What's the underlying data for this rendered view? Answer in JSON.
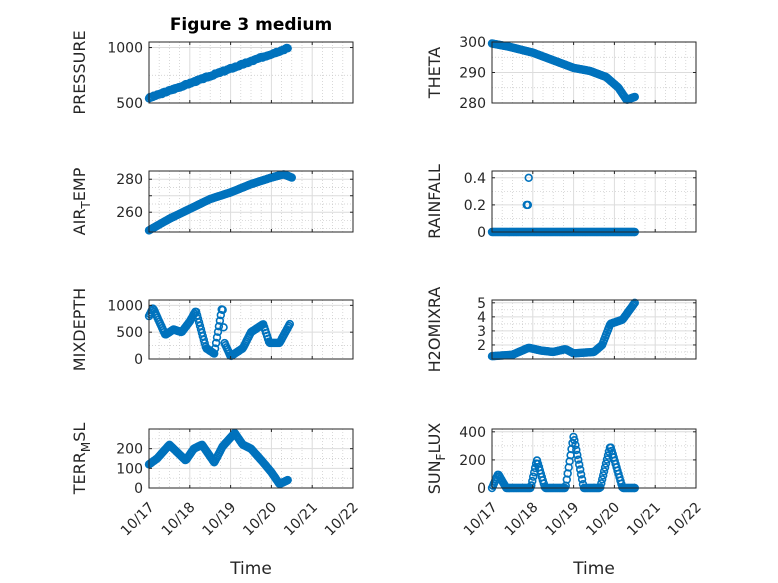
{
  "figure": {
    "title": "Figure 3 medium",
    "xlabel": "Time",
    "xtick_labels": [
      "10/17",
      "10/18",
      "10/19",
      "10/20",
      "10/21",
      "10/22"
    ],
    "marker_color": "#0072BD"
  },
  "chart_data": [
    {
      "type": "scatter",
      "name": "PRESSURE",
      "ylabel": "PRESSURE",
      "ylim": [
        500,
        1050
      ],
      "yticks": [
        500,
        1000
      ],
      "grid": true,
      "series": [
        {
          "x": [
            0.0,
            3.4
          ],
          "y": [
            545,
            995
          ],
          "shape": "linear",
          "noise": 6
        }
      ]
    },
    {
      "type": "scatter",
      "name": "THETA",
      "ylabel": "THETA",
      "ylim": [
        280,
        300
      ],
      "yticks": [
        280,
        290,
        300
      ],
      "grid": true,
      "series": [
        {
          "x": [
            0.0,
            0.4,
            1.0,
            1.6,
            2.0,
            2.4,
            2.8,
            3.1,
            3.3,
            3.5
          ],
          "y": [
            299.5,
            298.5,
            296.5,
            293.5,
            291.5,
            290.5,
            288.5,
            285.0,
            281.0,
            282.0
          ],
          "shape": "interp"
        }
      ]
    },
    {
      "type": "scatter",
      "name": "AIR_TEMP",
      "ylabel": "AIR",
      "ylabel_sub": "T",
      "ylabel_rest": "EMP",
      "ylim": [
        248,
        285
      ],
      "yticks": [
        260,
        270,
        280
      ],
      "tick_labels": [
        "260",
        "",
        "280"
      ],
      "grid": true,
      "series": [
        {
          "x": [
            0.0,
            0.5,
            1.0,
            1.5,
            2.0,
            2.5,
            3.0,
            3.3,
            3.5
          ],
          "y": [
            249,
            256,
            262,
            268,
            272,
            277,
            281,
            283,
            281
          ],
          "shape": "interp"
        }
      ]
    },
    {
      "type": "scatter",
      "name": "RAINFALL",
      "ylabel": "RAINFALL",
      "ylim": [
        0,
        0.45
      ],
      "yticks": [
        0,
        0.2,
        0.4
      ],
      "grid": true,
      "series": [
        {
          "x": [
            0.0,
            3.5
          ],
          "y": [
            0,
            0
          ],
          "shape": "flat",
          "spikes": [
            [
              0.85,
              0.2
            ],
            [
              0.88,
              0.2
            ],
            [
              0.9,
              0.4
            ]
          ]
        }
      ]
    },
    {
      "type": "scatter",
      "name": "MIXDEPTH",
      "ylabel": "MIXDEPTH",
      "ylim": [
        0,
        1100
      ],
      "yticks": [
        0,
        500,
        1000
      ],
      "grid": true,
      "series": [
        {
          "x": [
            0.0,
            0.1,
            0.4,
            0.6,
            0.8,
            1.0,
            1.15,
            1.4,
            1.6,
            1.8,
            1.85,
            2.0,
            2.3,
            2.5,
            2.8,
            2.95,
            3.2,
            3.45
          ],
          "y": [
            800,
            950,
            450,
            550,
            500,
            700,
            900,
            200,
            100,
            1000,
            300,
            50,
            200,
            500,
            650,
            300,
            300,
            650
          ],
          "shape": "interp"
        }
      ]
    },
    {
      "type": "scatter",
      "name": "H2OMIXRA",
      "ylabel": "H2OMIXRA",
      "ylim": [
        1,
        5.2
      ],
      "yticks": [
        2,
        3,
        4,
        5
      ],
      "grid": true,
      "series": [
        {
          "x": [
            0.0,
            0.5,
            0.9,
            1.2,
            1.5,
            1.8,
            2.0,
            2.5,
            2.7,
            2.9,
            3.2,
            3.5
          ],
          "y": [
            1.2,
            1.3,
            1.8,
            1.6,
            1.5,
            1.7,
            1.4,
            1.5,
            2.0,
            3.5,
            3.8,
            5.0
          ],
          "shape": "interp"
        }
      ]
    },
    {
      "type": "scatter",
      "name": "TERR_MSL",
      "ylabel": "TERR",
      "ylabel_sub": "M",
      "ylabel_rest": "SL",
      "ylim": [
        0,
        300
      ],
      "yticks": [
        0,
        100,
        200
      ],
      "grid": true,
      "series": [
        {
          "x": [
            0.0,
            0.2,
            0.5,
            0.7,
            0.9,
            1.1,
            1.3,
            1.6,
            1.8,
            2.1,
            2.3,
            2.5,
            2.8,
            3.0,
            3.2,
            3.4
          ],
          "y": [
            120,
            150,
            220,
            180,
            140,
            200,
            220,
            130,
            210,
            280,
            220,
            200,
            130,
            80,
            20,
            40
          ],
          "shape": "interp"
        }
      ]
    },
    {
      "type": "scatter",
      "name": "SUN_FLUX",
      "ylabel": "SUN",
      "ylabel_sub": "F",
      "ylabel_rest": "LUX",
      "ylim": [
        0,
        420
      ],
      "yticks": [
        0,
        200,
        400
      ],
      "grid": true,
      "series": [
        {
          "x": [
            0.0,
            0.15,
            0.35,
            0.7,
            0.95,
            1.1,
            1.3,
            1.5,
            1.8,
            2.0,
            2.25,
            2.45,
            2.65,
            2.9,
            3.2,
            3.5
          ],
          "y": [
            0,
            100,
            0,
            0,
            0,
            200,
            0,
            0,
            0,
            370,
            0,
            0,
            0,
            300,
            0,
            0
          ],
          "shape": "interp"
        }
      ]
    }
  ]
}
